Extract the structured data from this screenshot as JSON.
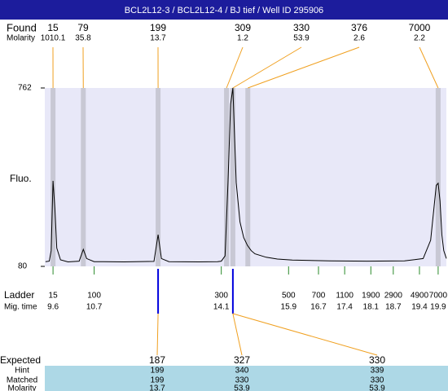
{
  "chart_data": {
    "type": "line",
    "title": "BCL2L12-3 / BCL2L12-4 / BJ tief / Well ID 295906",
    "y_label": "Fluo.",
    "xlim": [
      9.38,
      20.12
    ],
    "ylim": [
      80,
      762
    ],
    "yticks": [
      80,
      762
    ],
    "x": [
      9.4,
      9.5,
      9.55,
      9.6,
      9.65,
      9.7,
      9.8,
      10.0,
      10.3,
      10.41,
      10.5,
      10.7,
      11.5,
      12.3,
      12.41,
      12.5,
      12.7,
      13.5,
      14.0,
      14.1,
      14.2,
      14.28,
      14.35,
      14.41,
      14.45,
      14.5,
      14.6,
      14.7,
      14.8,
      14.9,
      15.0,
      15.3,
      15.6,
      16.0,
      17.0,
      18.0,
      19.0,
      19.5,
      19.7,
      19.85,
      19.9,
      19.95,
      20.0,
      20.05,
      20.12
    ],
    "series": [
      {
        "color": "#000000",
        "values": [
          98,
          100,
          140,
          407,
          300,
          150,
          105,
          97,
          100,
          145,
          110,
          98,
          97,
          99,
          201,
          110,
          98,
          97,
          98,
          100,
          120,
          400,
          700,
          762,
          600,
          400,
          250,
          190,
          160,
          140,
          128,
          115,
          108,
          104,
          101,
          100,
          101,
          110,
          180,
          390,
          398,
          330,
          200,
          140,
          110
        ]
      }
    ],
    "found": {
      "label": "Found",
      "molarity_label": "Molarity",
      "sizes": [
        15,
        79,
        199,
        309,
        330,
        376,
        7000
      ],
      "molarity": [
        1010.1,
        35.8,
        13.7,
        1.2,
        53.9,
        2.6,
        2.2
      ],
      "mig_times": [
        9.6,
        10.41,
        12.41,
        14.24,
        14.41,
        14.81,
        19.9
      ]
    },
    "ladder": {
      "label": "Ladder",
      "time_label": "Mig. time",
      "sizes": [
        15,
        100,
        300,
        500,
        700,
        1100,
        1900,
        2900,
        4900,
        7000
      ],
      "mig_times": [
        9.6,
        10.7,
        14.1,
        15.9,
        16.7,
        17.4,
        18.1,
        18.7,
        19.4,
        19.9
      ]
    },
    "expected": {
      "labels": [
        "Expected",
        "Hint",
        "Matched",
        "Molarity"
      ],
      "rows": [
        [
          187,
          327,
          330
        ],
        [
          199,
          340,
          339
        ],
        [
          199,
          330,
          330
        ],
        [
          13.7,
          53.9,
          53.9
        ]
      ]
    }
  }
}
